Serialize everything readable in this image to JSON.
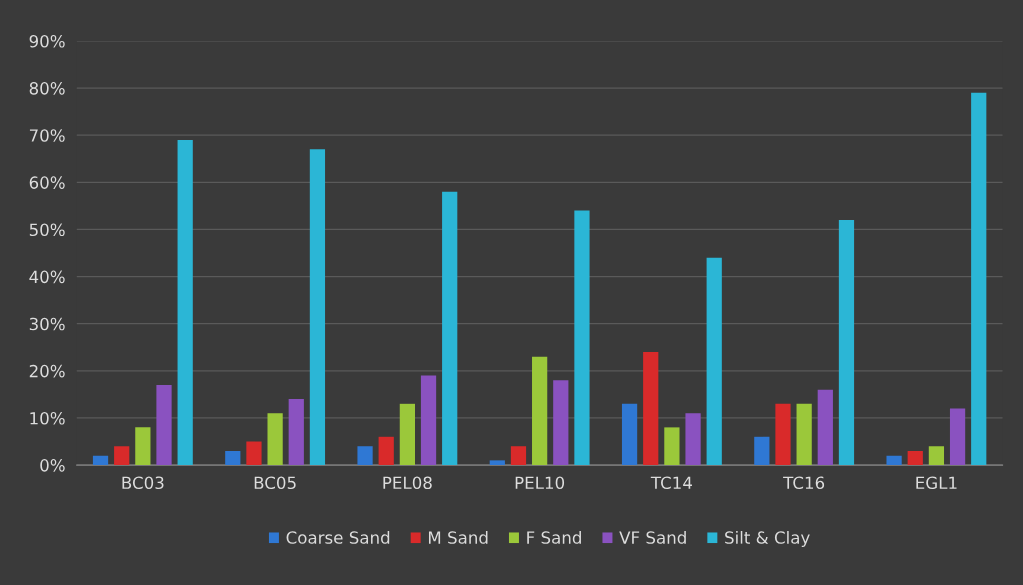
{
  "chart_data": {
    "type": "bar",
    "categories": [
      "BC03",
      "BC05",
      "PEL08",
      "PEL10",
      "TC14",
      "TC16",
      "EGL1"
    ],
    "series": [
      {
        "name": "Coarse Sand",
        "color": "#2f78d4",
        "values": [
          2,
          3,
          4,
          1,
          13,
          6,
          2
        ]
      },
      {
        "name": "M Sand",
        "color": "#d92a2a",
        "values": [
          4,
          5,
          6,
          4,
          24,
          13,
          3
        ]
      },
      {
        "name": "F Sand",
        "color": "#9bc83a",
        "values": [
          8,
          11,
          13,
          23,
          8,
          13,
          4
        ]
      },
      {
        "name": "VF Sand",
        "color": "#8a52c0",
        "values": [
          17,
          14,
          19,
          18,
          11,
          16,
          12
        ]
      },
      {
        "name": "Silt & Clay",
        "color": "#2bb6d6",
        "values": [
          69,
          67,
          58,
          54,
          44,
          52,
          79
        ]
      }
    ],
    "ylim": [
      0,
      90
    ],
    "yticks": [
      {
        "value": 0,
        "label": "0%"
      },
      {
        "value": 10,
        "label": "10%"
      },
      {
        "value": 20,
        "label": "20%"
      },
      {
        "value": 30,
        "label": "30%"
      },
      {
        "value": 40,
        "label": "40%"
      },
      {
        "value": 50,
        "label": "50%"
      },
      {
        "value": 60,
        "label": "60%"
      },
      {
        "value": 70,
        "label": "70%"
      },
      {
        "value": 80,
        "label": "80%"
      },
      {
        "value": 90,
        "label": "90%"
      }
    ],
    "grid": "y",
    "legend": "bottom"
  }
}
